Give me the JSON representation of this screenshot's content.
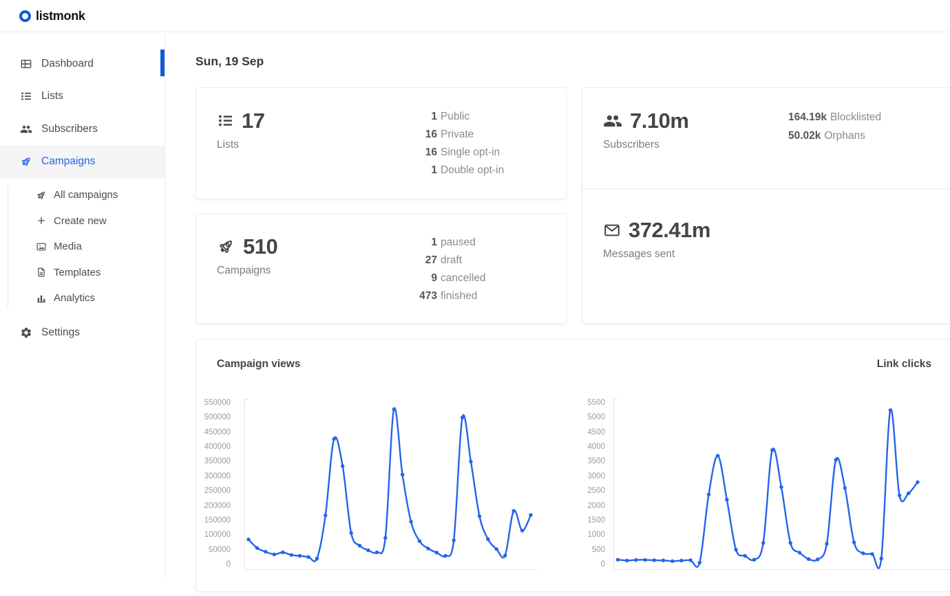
{
  "brand": {
    "name": "listmonk"
  },
  "sidebar": {
    "dashboard": "Dashboard",
    "lists": "Lists",
    "subscribers": "Subscribers",
    "campaigns": "Campaigns",
    "submenu": {
      "all_campaigns": "All campaigns",
      "create_new": "Create new",
      "media": "Media",
      "templates": "Templates",
      "analytics": "Analytics"
    },
    "settings": "Settings"
  },
  "header": {
    "date": "Sun, 19 Sep"
  },
  "cards": {
    "lists": {
      "value": "17",
      "label": "Lists",
      "stats": [
        {
          "num": "1",
          "label": "Public"
        },
        {
          "num": "16",
          "label": "Private"
        },
        {
          "num": "16",
          "label": "Single opt-in"
        },
        {
          "num": "1",
          "label": "Double opt-in"
        }
      ]
    },
    "subscribers": {
      "value": "7.10m",
      "label": "Subscribers",
      "stats": [
        {
          "num": "164.19k",
          "label": "Blocklisted"
        },
        {
          "num": "50.02k",
          "label": "Orphans"
        }
      ]
    },
    "campaigns": {
      "value": "510",
      "label": "Campaigns",
      "stats": [
        {
          "num": "1",
          "label": "paused"
        },
        {
          "num": "27",
          "label": "draft"
        },
        {
          "num": "9",
          "label": "cancelled"
        },
        {
          "num": "473",
          "label": "finished"
        }
      ]
    },
    "messages": {
      "value": "372.41m",
      "label": "Messages sent"
    }
  },
  "chart_data": [
    {
      "type": "line",
      "title": "Campaign views",
      "values": [
        85000,
        56000,
        43000,
        34000,
        41000,
        32000,
        29000,
        25000,
        20000,
        167000,
        427000,
        335000,
        107000,
        64000,
        48000,
        41000,
        90000,
        528000,
        306000,
        145000,
        79000,
        54000,
        40000,
        29000,
        82000,
        500000,
        350000,
        164000,
        86000,
        52000,
        30000,
        182000,
        115000,
        168000
      ],
      "ylim": [
        0,
        550000
      ],
      "ytick_step": 50000,
      "line_color": "#2563eb",
      "grid": false,
      "legend": false,
      "xticks_visible": false
    },
    {
      "type": "line",
      "title": "Link clicks",
      "values": [
        160,
        130,
        150,
        155,
        140,
        135,
        110,
        130,
        140,
        60,
        2380,
        3700,
        2200,
        500,
        290,
        160,
        730,
        3890,
        2630,
        730,
        400,
        180,
        170,
        700,
        3560,
        2600,
        750,
        380,
        350,
        200,
        5250,
        2350,
        2420,
        2800
      ],
      "ylim": [
        0,
        5500
      ],
      "ytick_step": 500,
      "line_color": "#2563eb",
      "grid": false,
      "legend": false,
      "xticks_visible": false
    }
  ],
  "colors": {
    "brand_blue": "#0b5cd8",
    "active_link_blue": "#2563eb",
    "chart_line_blue": "#2563eb",
    "axis_label_gray": "#9b9b9b"
  }
}
